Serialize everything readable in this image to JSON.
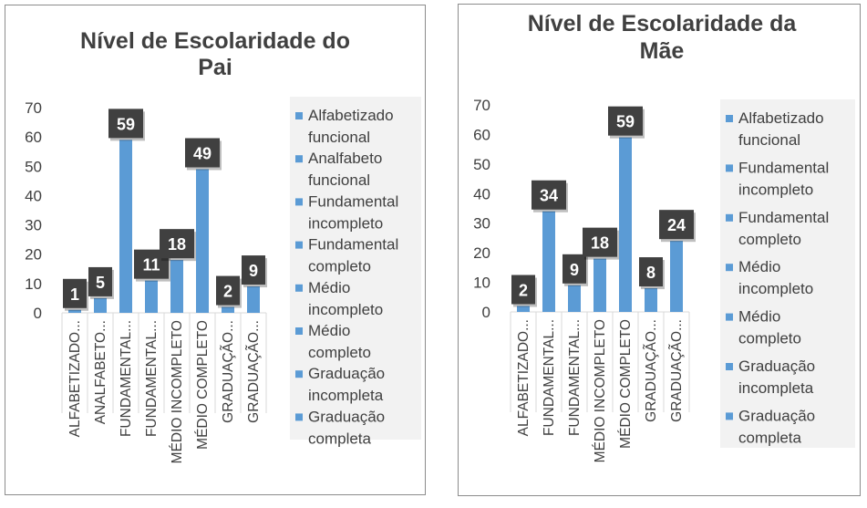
{
  "colors": {
    "bar": "#5b9bd5",
    "label_box": "#404040",
    "legend_bg": "#f2f2f2",
    "axis": "#d9d9d9"
  },
  "chart_data": [
    {
      "type": "bar",
      "title": "Nível de Escolaridade do Pai",
      "title_lines": [
        "Nível de Escolaridade do",
        "Pai"
      ],
      "categories": [
        "ALFABETIZADO...",
        "ANALFABETO...",
        "FUNDAMENTAL...",
        "FUNDAMENTAL...",
        "MÉDIO INCOMPLETO",
        "MÉDIO COMPLETO",
        "GRADUAÇÃO...",
        "GRADUAÇÃO..."
      ],
      "values": [
        1,
        5,
        59,
        11,
        18,
        49,
        2,
        9
      ],
      "data_labels": [
        "1",
        "5",
        "59",
        "11",
        "18",
        "49",
        "2",
        "9"
      ],
      "yticks": [
        "0",
        "10",
        "20",
        "30",
        "40",
        "50",
        "60",
        "70"
      ],
      "ylim": [
        0,
        70
      ],
      "legend_position": "right",
      "legend": [
        [
          "Alfabetizado",
          "funcional"
        ],
        [
          "Analfabeto",
          "funcional"
        ],
        [
          "Fundamental",
          "incompleto"
        ],
        [
          "Fundamental",
          "completo"
        ],
        [
          "Médio",
          "incompleto"
        ],
        [
          "Médio",
          "completo"
        ],
        [
          "Graduação",
          "incompleta"
        ],
        [
          "Graduação",
          "completa"
        ]
      ]
    },
    {
      "type": "bar",
      "title": "Nível de Escolaridade da Mãe",
      "title_lines": [
        "Nível de Escolaridade da",
        "Mãe"
      ],
      "categories": [
        "ALFABETIZADO...",
        "FUNDAMENTAL...",
        "FUNDAMENTAL...",
        "MÉDIO INCOMPLETO",
        "MÉDIO COMPLETO",
        "GRADUAÇÃO...",
        "GRADUAÇÃO..."
      ],
      "values": [
        2,
        34,
        9,
        18,
        59,
        8,
        24
      ],
      "data_labels": [
        "2",
        "34",
        "9",
        "18",
        "59",
        "8",
        "24"
      ],
      "yticks": [
        "0",
        "10",
        "20",
        "30",
        "40",
        "50",
        "60",
        "70"
      ],
      "ylim": [
        0,
        70
      ],
      "legend_position": "right",
      "legend": [
        [
          "Alfabetizado",
          "funcional"
        ],
        [
          "Fundamental",
          "incompleto"
        ],
        [
          "Fundamental",
          "completo"
        ],
        [
          "Médio",
          "incompleto"
        ],
        [
          "Médio",
          "completo"
        ],
        [
          "Graduação",
          "incompleta"
        ],
        [
          "Graduação",
          "completa"
        ]
      ]
    }
  ]
}
